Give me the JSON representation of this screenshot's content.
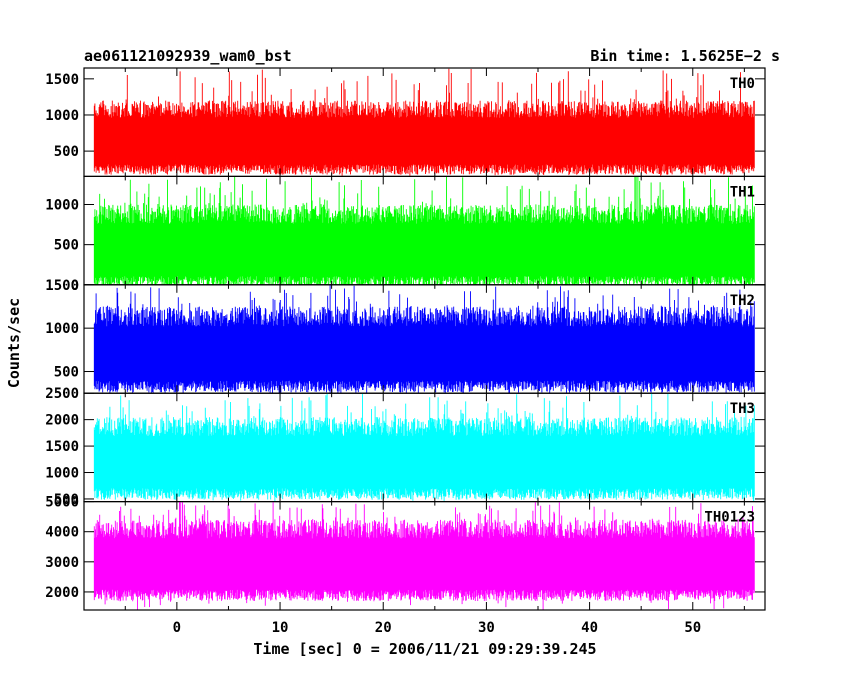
{
  "chart_data": {
    "type": "line",
    "title_left": "ae061121092939_wam0_bst",
    "title_right": "Bin time: 1.5625E−2 s",
    "xlabel": "Time [sec] 0 = 2006/11/21 09:29:39.245",
    "ylabel": "Counts/sec",
    "xlim": [
      -9,
      57
    ],
    "data_x_range": [
      -8,
      56
    ],
    "xticks": [
      0,
      10,
      20,
      30,
      40,
      50
    ],
    "panels": [
      {
        "name": "TH0",
        "color": "#ff0000",
        "ylim": [
          150,
          1650
        ],
        "yticks": [
          500,
          1000,
          1500
        ],
        "band": [
          250,
          1200
        ],
        "peak_max": 1650
      },
      {
        "name": "TH1",
        "color": "#00ff00",
        "ylim": [
          0,
          1350
        ],
        "yticks": [
          0,
          500,
          1000
        ],
        "band": [
          40,
          1000
        ],
        "peak_max": 1350
      },
      {
        "name": "TH2",
        "color": "#0000ff",
        "ylim": [
          250,
          1500
        ],
        "yticks": [
          500,
          1000,
          1500
        ],
        "band": [
          330,
          1250
        ],
        "peak_max": 1500
      },
      {
        "name": "TH3",
        "color": "#00ffff",
        "ylim": [
          450,
          2500
        ],
        "yticks": [
          500,
          1000,
          1500,
          2000,
          2500
        ],
        "band": [
          600,
          2050
        ],
        "peak_max": 2500
      },
      {
        "name": "TH0123",
        "color": "#ff00ff",
        "ylim": [
          1400,
          5000
        ],
        "yticks": [
          2000,
          3000,
          4000,
          5000
        ],
        "band": [
          1900,
          4400
        ],
        "peak_max": 5000
      }
    ]
  }
}
